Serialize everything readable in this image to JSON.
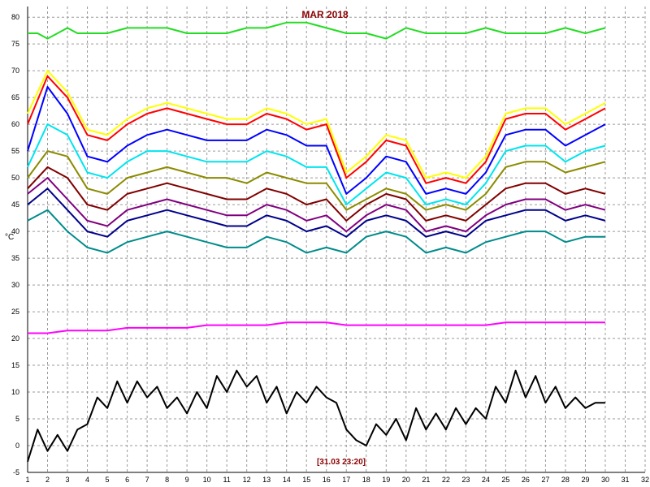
{
  "chart_data": {
    "type": "line",
    "title": "MAR 2018",
    "ylabel": "°C",
    "footer_stamp": "[31.03 23:20]",
    "xlim": [
      1,
      32
    ],
    "ylim": [
      -5,
      82
    ],
    "x_ticks": [
      1,
      2,
      3,
      4,
      5,
      6,
      7,
      8,
      9,
      10,
      11,
      12,
      13,
      14,
      15,
      16,
      17,
      18,
      19,
      20,
      21,
      22,
      23,
      24,
      25,
      26,
      27,
      28,
      29,
      30,
      31,
      32
    ],
    "y_ticks": [
      -5,
      0,
      5,
      10,
      15,
      20,
      25,
      30,
      35,
      40,
      45,
      50,
      55,
      60,
      65,
      70,
      75,
      80
    ],
    "grid": true,
    "series": [
      {
        "color": "#22dd22",
        "x": [
          1,
          1.5,
          2,
          2.5,
          3,
          3.5,
          4,
          5,
          6,
          7,
          8,
          9,
          10,
          11,
          12,
          13,
          14,
          15,
          16,
          17,
          18,
          19,
          20,
          21,
          22,
          23,
          24,
          25,
          26,
          27,
          28,
          29,
          30
        ],
        "values": [
          77,
          77,
          76,
          77,
          78,
          77,
          77,
          77,
          78,
          78,
          78,
          77,
          77,
          77,
          78,
          78,
          79,
          79,
          78,
          77,
          77,
          76,
          78,
          77,
          77,
          77,
          78,
          77,
          77,
          77,
          78,
          77,
          78
        ]
      },
      {
        "color": "#ffff00",
        "x": [
          1,
          2,
          3,
          4,
          5,
          6,
          7,
          8,
          9,
          10,
          11,
          12,
          13,
          14,
          15,
          16,
          17,
          18,
          19,
          20,
          21,
          22,
          23,
          24,
          25,
          26,
          27,
          28,
          29,
          30
        ],
        "values": [
          62,
          70,
          66,
          59,
          58,
          61,
          63,
          64,
          63,
          62,
          61,
          61,
          63,
          62,
          60,
          61,
          51,
          54,
          58,
          57,
          50,
          51,
          50,
          54,
          62,
          63,
          63,
          60,
          62,
          64
        ]
      },
      {
        "color": "#ff0000",
        "x": [
          1,
          2,
          3,
          4,
          5,
          6,
          7,
          8,
          9,
          10,
          11,
          12,
          13,
          14,
          15,
          16,
          17,
          18,
          19,
          20,
          21,
          22,
          23,
          24,
          25,
          26,
          27,
          28,
          29,
          30
        ],
        "values": [
          60,
          69,
          65,
          58,
          57,
          60,
          62,
          63,
          62,
          61,
          60,
          60,
          62,
          61,
          59,
          60,
          50,
          53,
          57,
          56,
          49,
          50,
          49,
          53,
          61,
          62,
          62,
          59,
          61,
          63
        ]
      },
      {
        "color": "#0000ff",
        "x": [
          1,
          2,
          3,
          4,
          5,
          6,
          7,
          8,
          9,
          10,
          11,
          12,
          13,
          14,
          15,
          16,
          17,
          18,
          19,
          20,
          21,
          22,
          23,
          24,
          25,
          26,
          27,
          28,
          29,
          30
        ],
        "values": [
          55,
          67,
          62,
          54,
          53,
          56,
          58,
          59,
          58,
          57,
          57,
          57,
          59,
          58,
          56,
          56,
          47,
          50,
          54,
          53,
          47,
          48,
          47,
          51,
          58,
          59,
          59,
          56,
          58,
          60
        ]
      },
      {
        "color": "#00e5ee",
        "x": [
          1,
          2,
          3,
          4,
          5,
          6,
          7,
          8,
          9,
          10,
          11,
          12,
          13,
          14,
          15,
          16,
          17,
          18,
          19,
          20,
          21,
          22,
          23,
          24,
          25,
          26,
          27,
          28,
          29,
          30
        ],
        "values": [
          52,
          60,
          58,
          51,
          50,
          53,
          55,
          55,
          54,
          53,
          53,
          53,
          55,
          54,
          52,
          52,
          45,
          48,
          51,
          50,
          45,
          46,
          45,
          49,
          55,
          56,
          56,
          53,
          55,
          56
        ]
      },
      {
        "color": "#8b8b00",
        "x": [
          1,
          2,
          3,
          4,
          5,
          6,
          7,
          8,
          9,
          10,
          11,
          12,
          13,
          14,
          15,
          16,
          17,
          18,
          19,
          20,
          21,
          22,
          23,
          24,
          25,
          26,
          27,
          28,
          29,
          30
        ],
        "values": [
          50,
          55,
          54,
          48,
          47,
          50,
          51,
          52,
          51,
          50,
          50,
          49,
          51,
          50,
          49,
          49,
          44,
          46,
          48,
          47,
          44,
          45,
          44,
          47,
          52,
          53,
          53,
          51,
          52,
          53
        ]
      },
      {
        "color": "#800000",
        "x": [
          1,
          2,
          3,
          4,
          5,
          6,
          7,
          8,
          9,
          10,
          11,
          12,
          13,
          14,
          15,
          16,
          17,
          18,
          19,
          20,
          21,
          22,
          23,
          24,
          25,
          26,
          27,
          28,
          29,
          30
        ],
        "values": [
          48,
          52,
          50,
          45,
          44,
          47,
          48,
          49,
          48,
          47,
          46,
          46,
          48,
          47,
          45,
          46,
          42,
          45,
          47,
          46,
          42,
          43,
          42,
          45,
          48,
          49,
          49,
          47,
          48,
          47
        ]
      },
      {
        "color": "#800080",
        "x": [
          1,
          2,
          3,
          4,
          5,
          6,
          7,
          8,
          9,
          10,
          11,
          12,
          13,
          14,
          15,
          16,
          17,
          18,
          19,
          20,
          21,
          22,
          23,
          24,
          25,
          26,
          27,
          28,
          29,
          30
        ],
        "values": [
          47,
          50,
          46,
          42,
          41,
          44,
          45,
          46,
          45,
          44,
          43,
          43,
          45,
          44,
          42,
          43,
          40,
          43,
          45,
          44,
          40,
          41,
          40,
          43,
          45,
          46,
          46,
          44,
          45,
          44
        ]
      },
      {
        "color": "#00008b",
        "x": [
          1,
          2,
          3,
          4,
          5,
          6,
          7,
          8,
          9,
          10,
          11,
          12,
          13,
          14,
          15,
          16,
          17,
          18,
          19,
          20,
          21,
          22,
          23,
          24,
          25,
          26,
          27,
          28,
          29,
          30
        ],
        "values": [
          45,
          48,
          44,
          40,
          39,
          42,
          43,
          44,
          43,
          42,
          41,
          41,
          43,
          42,
          40,
          41,
          39,
          42,
          43,
          42,
          39,
          40,
          39,
          42,
          43,
          44,
          44,
          42,
          43,
          42
        ]
      },
      {
        "color": "#008b8b",
        "x": [
          1,
          2,
          3,
          4,
          5,
          6,
          7,
          8,
          9,
          10,
          11,
          12,
          13,
          14,
          15,
          16,
          17,
          18,
          19,
          20,
          21,
          22,
          23,
          24,
          25,
          26,
          27,
          28,
          29,
          30
        ],
        "values": [
          42,
          44,
          40,
          37,
          36,
          38,
          39,
          40,
          39,
          38,
          37,
          37,
          39,
          38,
          36,
          37,
          36,
          39,
          40,
          39,
          36,
          37,
          36,
          38,
          39,
          40,
          40,
          38,
          39,
          39
        ]
      },
      {
        "color": "#ff00ff",
        "x": [
          1,
          2,
          3,
          4,
          5,
          6,
          7,
          8,
          9,
          10,
          11,
          12,
          13,
          14,
          15,
          16,
          17,
          18,
          19,
          20,
          21,
          22,
          23,
          24,
          25,
          26,
          27,
          28,
          29,
          30
        ],
        "values": [
          21,
          21,
          21.5,
          21.5,
          21.5,
          22,
          22,
          22,
          22,
          22.5,
          22.5,
          22.5,
          22.5,
          23,
          23,
          23,
          22.5,
          22.5,
          22.5,
          22.5,
          22.5,
          22.5,
          22.5,
          22.5,
          23,
          23,
          23,
          23,
          23,
          23
        ]
      },
      {
        "color": "#000000",
        "x": [
          1,
          1.5,
          2,
          2.5,
          3,
          3.5,
          4,
          4.5,
          5,
          5.5,
          6,
          6.5,
          7,
          7.5,
          8,
          8.5,
          9,
          9.5,
          10,
          10.5,
          11,
          11.5,
          12,
          12.5,
          13,
          13.5,
          14,
          14.5,
          15,
          15.5,
          16,
          16.5,
          17,
          17.5,
          18,
          18.5,
          19,
          19.5,
          20,
          20.5,
          21,
          21.5,
          22,
          22.5,
          23,
          23.5,
          24,
          24.5,
          25,
          25.5,
          26,
          26.5,
          27,
          27.5,
          28,
          28.5,
          29,
          29.5,
          30
        ],
        "values": [
          -3,
          3,
          -1,
          2,
          -1,
          3,
          4,
          9,
          7,
          12,
          8,
          12,
          9,
          11,
          7,
          9,
          6,
          10,
          7,
          13,
          10,
          14,
          11,
          13,
          8,
          11,
          6,
          10,
          8,
          11,
          9,
          8,
          3,
          1,
          0,
          4,
          2,
          5,
          1,
          7,
          3,
          6,
          3,
          7,
          4,
          7,
          5,
          11,
          8,
          14,
          9,
          13,
          8,
          11,
          7,
          9,
          7,
          8,
          8
        ]
      }
    ]
  }
}
